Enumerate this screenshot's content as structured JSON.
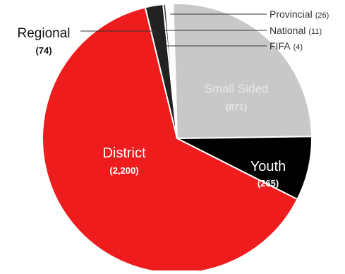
{
  "chart_data": {
    "type": "pie",
    "start_angle_deg": -4.4,
    "direction": "clockwise",
    "slices": [
      {
        "label": "Provincial",
        "value_label": "(26)",
        "value": 26,
        "color": "#ffffff"
      },
      {
        "label": "Small Sided",
        "value_label": "(871)",
        "value": 871,
        "color": "#c8c8c8"
      },
      {
        "label": "Youth",
        "value_label": "(265)",
        "value": 265,
        "color": "#000000"
      },
      {
        "label": "District",
        "value_label": "(2,200)",
        "value": 2200,
        "color": "#ee1c1c"
      },
      {
        "label": "Regional",
        "value_label": "(74)",
        "value": 74,
        "color": "#222222"
      },
      {
        "label": "National",
        "value_label": "(11)",
        "value": 11,
        "color": "#444444"
      },
      {
        "label": "FIFA",
        "value_label": "(4)",
        "value": 4,
        "color": "#888888"
      }
    ],
    "label_colors": {
      "Provincial": "#333333",
      "National": "#333333",
      "FIFA": "#333333",
      "Regional": "#111111",
      "Small Sided": "#e6e6e6",
      "Youth": "#ffffff",
      "District": "#ffffff"
    }
  }
}
